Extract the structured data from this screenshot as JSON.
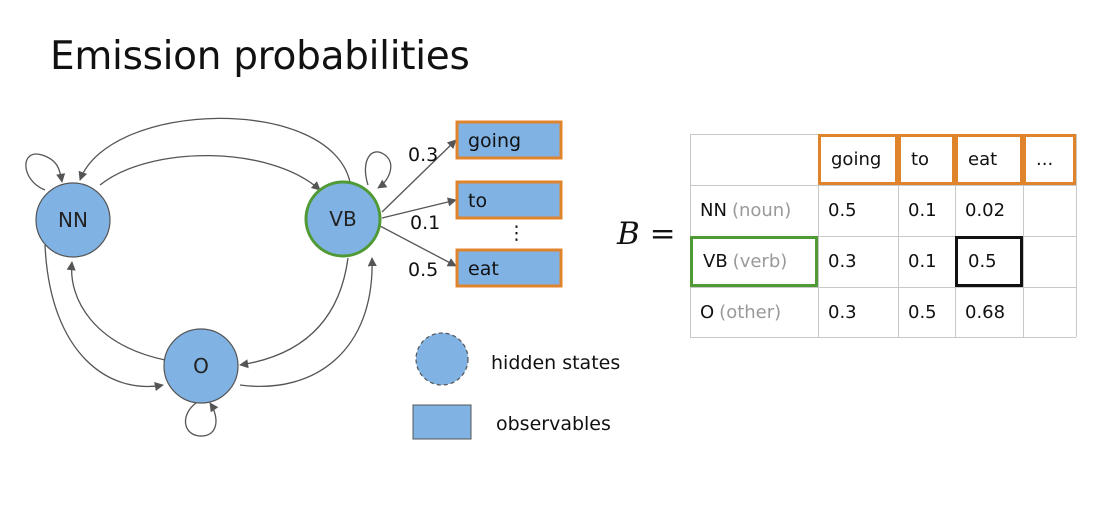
{
  "title": "Emission probabilities",
  "states": {
    "nn": "NN",
    "vb": "VB",
    "o": "O"
  },
  "observables": {
    "going": "going",
    "to": "to",
    "eat": "eat",
    "ellipsis": "⋮"
  },
  "emission_probs": {
    "going": "0.3",
    "to": "0.1",
    "eat": "0.5"
  },
  "legend": {
    "hidden_states": "hidden states",
    "observables": "observables"
  },
  "matrix": {
    "symbol": "B =",
    "columns": [
      "going",
      "to",
      "eat",
      "..."
    ],
    "rows": [
      {
        "label": "NN",
        "sub": "(noun)",
        "values": [
          "0.5",
          "0.1",
          "0.02",
          ""
        ]
      },
      {
        "label": "VB",
        "sub": "(verb)",
        "values": [
          "0.3",
          "0.1",
          "0.5",
          ""
        ]
      },
      {
        "label": "O",
        "sub": "(other)",
        "values": [
          "0.3",
          "0.5",
          "0.68",
          ""
        ]
      }
    ]
  },
  "colors": {
    "node_fill": "#80b2e4",
    "accent_orange": "#e0842c",
    "accent_green": "#4f9a35",
    "edge": "#555555",
    "grid": "#c8c8c8"
  }
}
